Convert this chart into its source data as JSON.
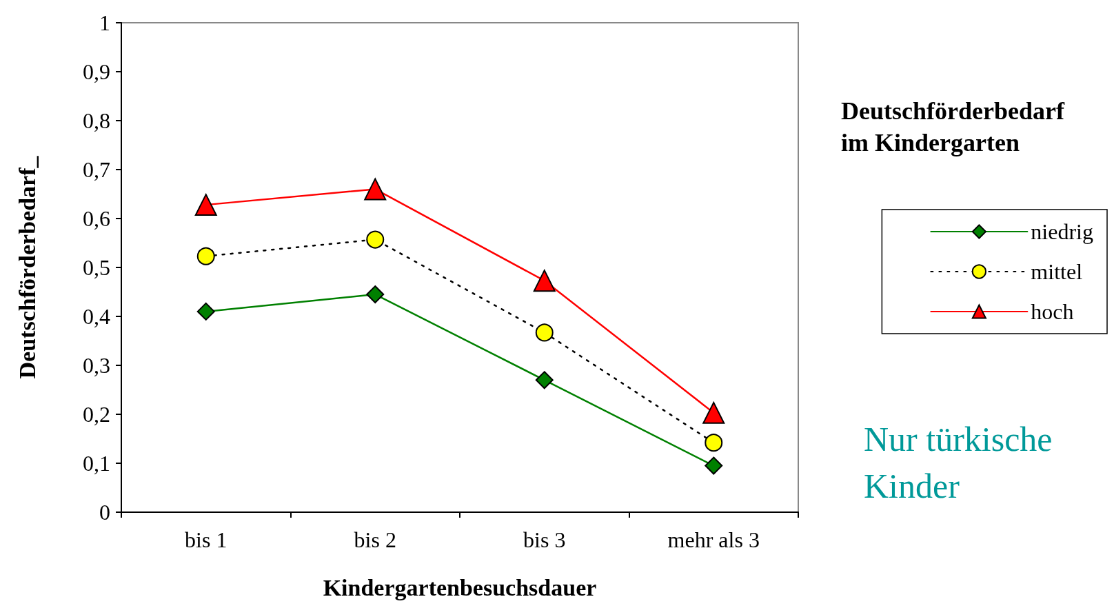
{
  "chart_data": {
    "type": "line",
    "xlabel": "Kindergartenbesuchsdauer",
    "ylabel": "Deutschförderbedarf_",
    "legend_title": "Deutschförderbedarf im Kindergarten",
    "legend": "right",
    "grid": false,
    "annotations": [
      "Nur türkische Kinder"
    ],
    "categories": [
      "bis 1",
      "bis 2",
      "bis 3",
      "mehr als 3"
    ],
    "ylim": [
      0,
      1
    ],
    "yticks": [
      0,
      {
        "value": 0.1,
        "label": "0,1"
      },
      {
        "value": 0.2,
        "label": "0,2"
      },
      {
        "value": 0.3,
        "label": "0,3"
      },
      {
        "value": 0.4,
        "label": "0,4"
      },
      {
        "value": 0.5,
        "label": "0,5"
      },
      {
        "value": 0.6,
        "label": "0,6"
      },
      {
        "value": 0.7,
        "label": "0,7"
      },
      {
        "value": 0.8,
        "label": "0,8"
      },
      {
        "value": 0.9,
        "label": "0,9"
      },
      1
    ],
    "series": [
      {
        "name": "niedrig",
        "color": "#008000",
        "marker": "diamond",
        "line_style": "solid",
        "values": [
          0.41,
          0.445,
          0.27,
          0.095
        ]
      },
      {
        "name": "mittel",
        "color": "#000000",
        "marker": "circle",
        "line_style": "dotted",
        "values": [
          0.523,
          0.557,
          0.367,
          0.142
        ]
      },
      {
        "name": "hoch",
        "color": "#ff0000",
        "marker": "triangle",
        "line_style": "solid",
        "values": [
          0.628,
          0.66,
          0.473,
          0.203
        ]
      }
    ]
  }
}
